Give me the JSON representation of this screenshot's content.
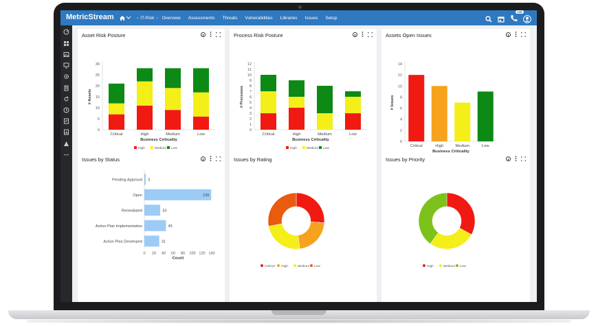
{
  "app": {
    "logo": "MetricStream"
  },
  "nav": {
    "breadcrumb": "IT-Risk",
    "items": [
      "Overview",
      "Assessments",
      "Threats",
      "Vulnerabilities",
      "Libraries",
      "Issues",
      "Setup"
    ]
  },
  "header": {
    "notification_count": "139"
  },
  "colors": {
    "red": "#f11a12",
    "orange": "#f7a21c",
    "yellow": "#f4ee19",
    "green": "#0c8a15",
    "blue": "#9ccbf6",
    "topbar": "#2e79c0"
  },
  "panels": {
    "asset_risk": {
      "title": "Asset Risk Posture"
    },
    "process_risk": {
      "title": "Process Risk Posture"
    },
    "assets_open": {
      "title": "Assets Open Issues"
    },
    "issues_status": {
      "title": "Issues by Status"
    },
    "issues_rating": {
      "title": "Issues by Rating"
    },
    "issues_priority": {
      "title": "Issues by Priority"
    }
  },
  "chart_data": [
    {
      "id": "asset_risk",
      "type": "bar",
      "stacked": true,
      "categories": [
        "Critical",
        "High",
        "Medium",
        "Low"
      ],
      "xlabel": "Business Criticality",
      "ylabel": "# Assets",
      "ylim": [
        0,
        30
      ],
      "yticks": [
        0,
        5,
        10,
        15,
        20,
        25,
        30
      ],
      "series": [
        {
          "name": "High",
          "color": "#f11a12",
          "values": [
            7,
            11,
            9,
            6
          ]
        },
        {
          "name": "Medium",
          "color": "#f4ee19",
          "values": [
            5,
            11,
            10,
            11
          ]
        },
        {
          "name": "Low",
          "color": "#0c8a15",
          "values": [
            9,
            6,
            9,
            11
          ]
        }
      ]
    },
    {
      "id": "process_risk",
      "type": "bar",
      "stacked": true,
      "categories": [
        "Critical",
        "High",
        "Medium",
        "Low"
      ],
      "xlabel": "Business Criticality",
      "ylabel": "# Processes",
      "ylim": [
        0,
        12
      ],
      "yticks": [
        0,
        1,
        2,
        3,
        4,
        5,
        6,
        7,
        8,
        9,
        10,
        11,
        12
      ],
      "series": [
        {
          "name": "High",
          "color": "#f11a12",
          "values": [
            3,
            4,
            0,
            3
          ]
        },
        {
          "name": "Medium",
          "color": "#f4ee19",
          "values": [
            4,
            2,
            3,
            3
          ]
        },
        {
          "name": "Low",
          "color": "#0c8a15",
          "values": [
            3,
            3,
            5,
            1
          ]
        }
      ]
    },
    {
      "id": "assets_open",
      "type": "bar",
      "stacked": false,
      "categories": [
        "Critical",
        "High",
        "Medium",
        "Low"
      ],
      "xlabel": "Business Criticality",
      "ylabel": "# Issues",
      "ylim": [
        0,
        14
      ],
      "yticks": [
        0,
        2,
        4,
        6,
        8,
        10,
        12,
        14
      ],
      "values": [
        12,
        10,
        7,
        9
      ],
      "colors": [
        "#f11a12",
        "#f7a21c",
        "#f4ee19",
        "#0c8a15"
      ]
    },
    {
      "id": "issues_status",
      "type": "bar",
      "orientation": "horizontal",
      "categories": [
        "Pending Approval",
        "Open",
        "Remediated",
        "Action Plan Implementation",
        "Action Plan Developed"
      ],
      "values": [
        3,
        139,
        33,
        45,
        31
      ],
      "xlabel": "Count",
      "xlim": [
        0,
        140
      ],
      "xticks": [
        0,
        20,
        40,
        60,
        80,
        100,
        120,
        140
      ],
      "color": "#9ccbf6"
    },
    {
      "id": "issues_rating",
      "type": "pie",
      "donut": true,
      "labels": [
        "Critical",
        "High",
        "Medium",
        "Low"
      ],
      "values": [
        26,
        22,
        24,
        28
      ],
      "colors": [
        "#f11a12",
        "#f7a21c",
        "#f4ee19",
        "#e95b0e"
      ]
    },
    {
      "id": "issues_priority",
      "type": "pie",
      "donut": true,
      "labels": [
        "High",
        "Medium",
        "Low"
      ],
      "values": [
        33,
        27,
        40
      ],
      "colors": [
        "#f11a12",
        "#f4ee19",
        "#7cc21b"
      ]
    }
  ]
}
